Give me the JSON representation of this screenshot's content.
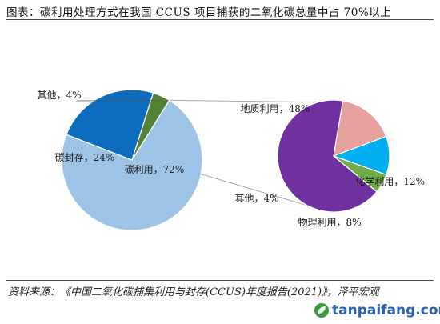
{
  "title": "图表：碳利用处理方式在我国 CCUS 项目捕获的二氧化碳总量中占 70%以上",
  "source": {
    "text": "资料来源：《中国二氧化碳捕集利用与封存(CCUS)年度报告(2021)》，泽平宏观"
  },
  "watermark": {
    "text": "tanpaifang.com",
    "icon": "leaf-logo-icon"
  },
  "chart_data": [
    {
      "type": "pie",
      "slices": [
        {
          "label": "碳利用，72%",
          "value": 72,
          "color": "#9dc3e6"
        },
        {
          "label": "碳封存，24%",
          "value": 24,
          "color": "#0d6cbd"
        },
        {
          "label": "其他，4%",
          "value": 4,
          "color": "#548235"
        }
      ],
      "legend": "none"
    },
    {
      "type": "pie",
      "slices": [
        {
          "label": "地质利用，48%",
          "value": 48,
          "color": "#7030a0"
        },
        {
          "label": "化学利用，12%",
          "value": 12,
          "color": "#e6a09e"
        },
        {
          "label": "物理利用，8%",
          "value": 8,
          "color": "#00b0f0"
        },
        {
          "label": "其他，4%",
          "value": 4,
          "color": "#70ad47"
        }
      ],
      "legend": "none"
    }
  ]
}
